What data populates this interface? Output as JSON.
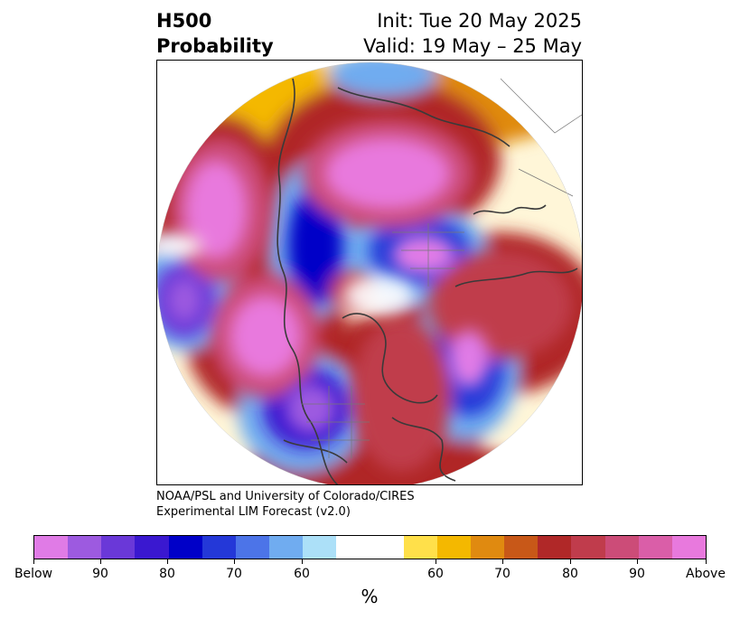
{
  "header": {
    "title_line1": "H500",
    "title_line2": "Probability",
    "init": "Init: Tue 20 May 2025",
    "valid": "Valid: 19 May – 25 May"
  },
  "credit": {
    "line1": "NOAA/PSL and University of Colorado/CIRES",
    "line2": "Experimental LIM Forecast (v2.0)"
  },
  "colorbar": {
    "unit": "%",
    "colors": [
      "#e07be6",
      "#9d5ae0",
      "#6a38d8",
      "#3a18d0",
      "#0000c8",
      "#2438d8",
      "#4c74e8",
      "#70acf0",
      "#ace0f8",
      "#ffffff",
      "#ffe04a",
      "#f4b800",
      "#e08a10",
      "#c85818",
      "#b02828",
      "#c03c4c",
      "#cc4c78",
      "#da5ea8",
      "#e879dd"
    ],
    "labels": [
      "Below",
      "90",
      "80",
      "70",
      "60",
      "60",
      "70",
      "80",
      "90",
      "Above"
    ]
  },
  "map": {
    "projection": "north-polar-stereographic",
    "categories": [
      "below normal",
      "above normal"
    ]
  }
}
